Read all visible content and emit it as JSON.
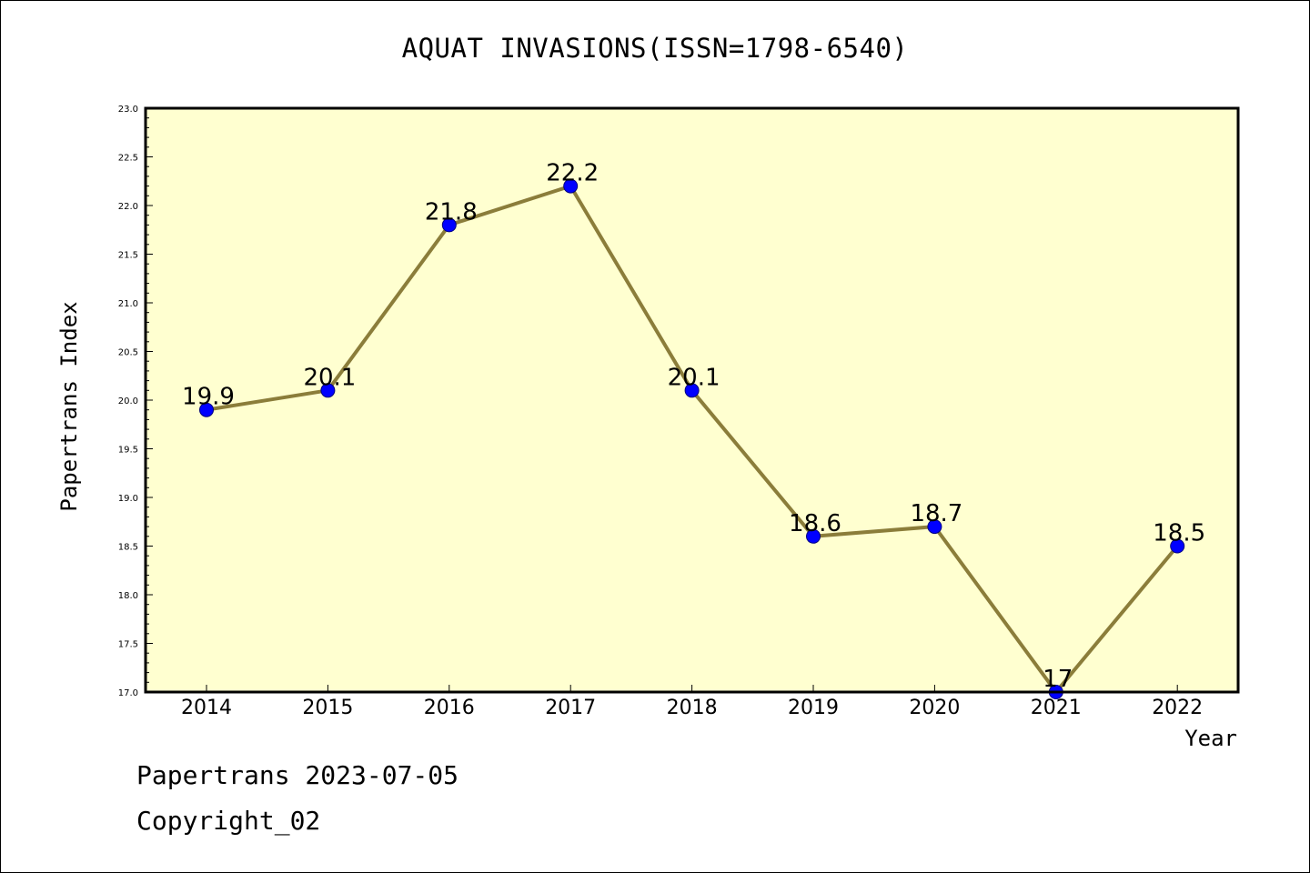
{
  "colors": {
    "plot_background": "#ffffd0",
    "line": "#8b7d3a",
    "marker": "#0000ff",
    "marker_edge": "#000080"
  },
  "chart_data": {
    "type": "line",
    "title": "AQUAT INVASIONS(ISSN=1798-6540)",
    "xlabel": "Year",
    "ylabel": "Papertrans Index",
    "categories": [
      "2014",
      "2015",
      "2016",
      "2017",
      "2018",
      "2019",
      "2020",
      "2021",
      "2022"
    ],
    "series": [
      {
        "values": [
          19.9,
          20.1,
          21.8,
          22.2,
          20.1,
          18.6,
          18.7,
          17,
          18.5
        ],
        "labels": [
          "19.9",
          "20.1",
          "21.8",
          "22.2",
          "20.1",
          "18.6",
          "18.7",
          "17",
          "18.5"
        ]
      }
    ],
    "ylim": [
      17.0,
      23.0
    ],
    "yticks": [
      "17.0",
      "17.5",
      "18.0",
      "18.5",
      "19.0",
      "19.5",
      "20.0",
      "20.5",
      "21.0",
      "21.5",
      "22.0",
      "22.5",
      "23.0"
    ],
    "grid": false,
    "legend": "none"
  },
  "footer": {
    "date_line": "Papertrans 2023-07-05",
    "copyright": "Copyright_02"
  }
}
